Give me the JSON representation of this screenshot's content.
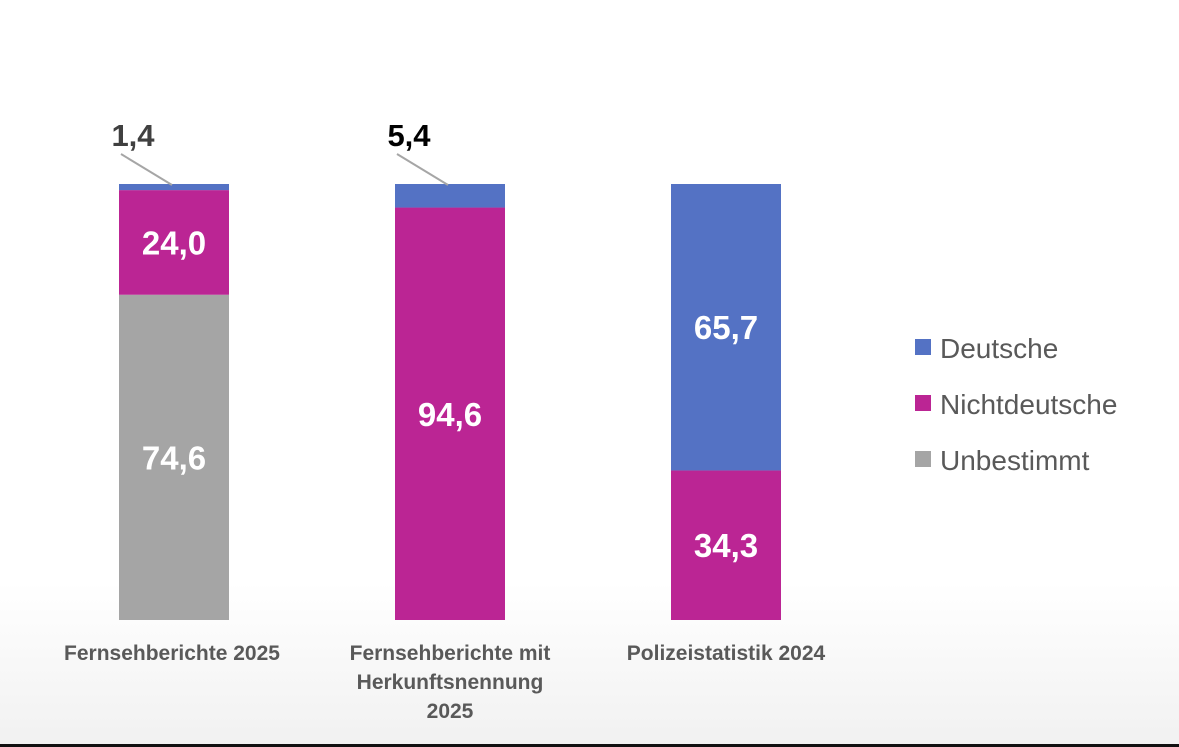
{
  "chart_data": {
    "type": "bar",
    "stacked": true,
    "normalized_percent": true,
    "title": "",
    "xlabel": "",
    "ylabel": "",
    "ylim": [
      0,
      100
    ],
    "grid": false,
    "legend_position": "right",
    "categories": [
      [
        "Fernsehberichte 2025"
      ],
      [
        "Fernsehberichte mit",
        "Herkunftsnennung",
        "2025"
      ],
      [
        "Polizeistatistik 2024"
      ]
    ],
    "series": [
      {
        "name": "Unbestimmt",
        "color": "#a5a5a5",
        "values": [
          74.6,
          0,
          0
        ],
        "labels": [
          "74,6",
          "",
          ""
        ]
      },
      {
        "name": "Nichtdeutsche",
        "color": "#bb2594",
        "values": [
          24.0,
          94.6,
          34.3
        ],
        "labels": [
          "24,0",
          "94,6",
          "34,3"
        ]
      },
      {
        "name": "Deutsche",
        "color": "#5472c4",
        "values": [
          1.4,
          5.4,
          65.7
        ],
        "labels": [
          "1,4",
          "5,4",
          "65,7"
        ]
      }
    ],
    "callouts": [
      {
        "category_index": 0,
        "series": "Deutsche",
        "text": "1,4",
        "color": "#404040"
      },
      {
        "category_index": 1,
        "series": "Deutsche",
        "text": "5,4",
        "color": "#000000"
      }
    ],
    "legend": [
      {
        "name": "Deutsche",
        "color": "#5472c4"
      },
      {
        "name": "Nichtdeutsche",
        "color": "#bb2594"
      },
      {
        "name": "Unbestimmt",
        "color": "#a5a5a5"
      }
    ]
  }
}
